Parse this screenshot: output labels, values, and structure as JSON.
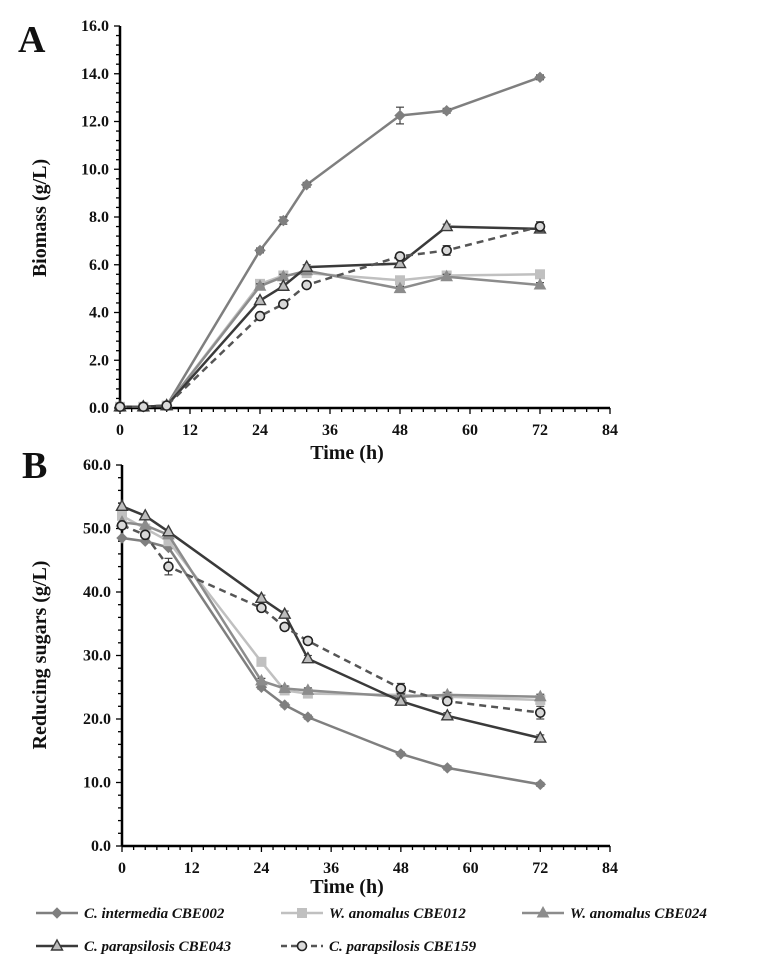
{
  "chart_data": [
    {
      "type": "line",
      "panel": "A",
      "title": "",
      "xlabel": "Time (h)",
      "ylabel": "Biomass (g/L)",
      "xlim": [
        0,
        84
      ],
      "ylim": [
        0,
        16
      ],
      "x_ticks": [
        "0",
        "12",
        "24",
        "36",
        "48",
        "60",
        "72",
        "84"
      ],
      "y_ticks": [
        "0.0",
        "2.0",
        "4.0",
        "6.0",
        "8.0",
        "10.0",
        "12.0",
        "14.0",
        "16.0"
      ],
      "series": [
        {
          "name": "C. intermedia CBE002",
          "color": "#7f7f7f",
          "marker": "diamond",
          "dash": false,
          "x": [
            0,
            4,
            8,
            24,
            28,
            32,
            48,
            56,
            72
          ],
          "values": [
            0.05,
            0.05,
            0.1,
            6.6,
            7.85,
            9.35,
            12.25,
            12.45,
            13.85
          ],
          "errors": [
            0,
            0,
            0,
            0.1,
            0.15,
            0.1,
            0.35,
            0.1,
            0.1
          ]
        },
        {
          "name": "W. anomalus CBE012",
          "color": "#c0c0c0",
          "marker": "square",
          "dash": false,
          "x": [
            0,
            4,
            8,
            24,
            28,
            32,
            48,
            56,
            72
          ],
          "values": [
            0.05,
            0.05,
            0.1,
            5.2,
            5.55,
            5.65,
            5.35,
            5.55,
            5.6
          ],
          "errors": [
            0,
            0,
            0,
            0.1,
            0.1,
            0.1,
            0.1,
            0.1,
            0.1
          ]
        },
        {
          "name": "W. anomalus CBE024",
          "color": "#8c8c8c",
          "marker": "triangle",
          "dash": false,
          "x": [
            0,
            4,
            8,
            24,
            28,
            32,
            48,
            56,
            72
          ],
          "values": [
            0.05,
            0.05,
            0.1,
            5.1,
            5.5,
            5.75,
            5.0,
            5.5,
            5.15
          ],
          "errors": [
            0,
            0,
            0,
            0.1,
            0.1,
            0.1,
            0.1,
            0.1,
            0.1
          ]
        },
        {
          "name": "C. parapsilosis CBE043",
          "color": "#3a3a3a",
          "marker": "triangle-open",
          "dash": false,
          "x": [
            0,
            4,
            8,
            24,
            28,
            32,
            48,
            56,
            72
          ],
          "values": [
            0.05,
            0.05,
            0.1,
            4.5,
            5.1,
            5.9,
            6.05,
            7.6,
            7.5
          ],
          "errors": [
            0,
            0,
            0,
            0.1,
            0.1,
            0.1,
            0.15,
            0.1,
            0.1
          ]
        },
        {
          "name": "C. parapsilosis CBE159",
          "color": "#555555",
          "marker": "circle-open",
          "dash": true,
          "x": [
            0,
            4,
            8,
            24,
            28,
            32,
            48,
            56,
            72
          ],
          "values": [
            0.05,
            0.05,
            0.1,
            3.85,
            4.35,
            5.15,
            6.35,
            6.6,
            7.6
          ],
          "errors": [
            0,
            0,
            0,
            0.1,
            0.1,
            0.1,
            0.1,
            0.2,
            0.2
          ]
        }
      ]
    },
    {
      "type": "line",
      "panel": "B",
      "title": "",
      "xlabel": "Time (h)",
      "ylabel": "Reducing sugars (g/L)",
      "xlim": [
        0,
        84
      ],
      "ylim": [
        0,
        60
      ],
      "x_ticks": [
        "0",
        "12",
        "24",
        "36",
        "48",
        "60",
        "72",
        "84"
      ],
      "y_ticks": [
        "0.0",
        "10.0",
        "20.0",
        "30.0",
        "40.0",
        "50.0",
        "60.0"
      ],
      "series": [
        {
          "name": "C. intermedia CBE002",
          "color": "#7f7f7f",
          "marker": "diamond",
          "dash": false,
          "x": [
            0,
            4,
            8,
            24,
            28,
            32,
            48,
            56,
            72
          ],
          "values": [
            48.5,
            48.0,
            47.0,
            25.0,
            22.2,
            20.3,
            14.5,
            12.3,
            9.7
          ],
          "errors": [
            0,
            0,
            0,
            0.3,
            0.3,
            0.3,
            0.3,
            0.3,
            0.3
          ]
        },
        {
          "name": "W. anomalus CBE012",
          "color": "#c0c0c0",
          "marker": "square",
          "dash": false,
          "x": [
            0,
            4,
            8,
            24,
            28,
            32,
            48,
            56,
            72
          ],
          "values": [
            52.0,
            50.0,
            48.0,
            29.0,
            24.5,
            24.0,
            23.8,
            23.5,
            23.0
          ],
          "errors": [
            0,
            0,
            0,
            0.4,
            0.4,
            0.4,
            0.4,
            0.4,
            0.4
          ]
        },
        {
          "name": "W. anomalus CBE024",
          "color": "#8c8c8c",
          "marker": "triangle",
          "dash": false,
          "x": [
            0,
            4,
            8,
            24,
            28,
            32,
            48,
            56,
            72
          ],
          "values": [
            51.0,
            50.5,
            49.0,
            26.0,
            24.8,
            24.5,
            23.5,
            23.8,
            23.5
          ],
          "errors": [
            0,
            0,
            0,
            0.4,
            0.4,
            0.4,
            0.4,
            0.4,
            0.4
          ]
        },
        {
          "name": "C. parapsilosis CBE043",
          "color": "#3a3a3a",
          "marker": "triangle-open",
          "dash": false,
          "x": [
            0,
            4,
            8,
            24,
            28,
            32,
            48,
            56,
            72
          ],
          "values": [
            53.5,
            52.0,
            49.5,
            39.0,
            36.5,
            29.5,
            22.8,
            20.5,
            17.0
          ],
          "errors": [
            0,
            0,
            0,
            0.5,
            0.5,
            0.5,
            0.5,
            0.5,
            0.5
          ]
        },
        {
          "name": "C. parapsilosis CBE159",
          "color": "#555555",
          "marker": "circle-open",
          "dash": true,
          "x": [
            0,
            4,
            8,
            24,
            28,
            32,
            48,
            56,
            72
          ],
          "values": [
            50.5,
            49.0,
            44.0,
            37.5,
            34.5,
            32.3,
            24.8,
            22.8,
            21.0
          ],
          "errors": [
            0.3,
            0.3,
            1.3,
            0.5,
            0.5,
            0.5,
            0.8,
            0.5,
            1.0
          ]
        }
      ]
    }
  ],
  "figure": {
    "panel_a_letter": "A",
    "panel_b_letter": "B"
  },
  "legend": [
    {
      "label": "C. intermedia CBE002",
      "color": "#7f7f7f",
      "marker": "diamond",
      "dash": false
    },
    {
      "label": "W. anomalus CBE012",
      "color": "#c0c0c0",
      "marker": "square",
      "dash": false
    },
    {
      "label": "W. anomalus CBE024",
      "color": "#8c8c8c",
      "marker": "triangle",
      "dash": false
    },
    {
      "label": "C. parapsilosis CBE043",
      "color": "#3a3a3a",
      "marker": "triangle-open",
      "dash": false
    },
    {
      "label": "C. parapsilosis CBE159",
      "color": "#555555",
      "marker": "circle-open",
      "dash": true
    }
  ]
}
